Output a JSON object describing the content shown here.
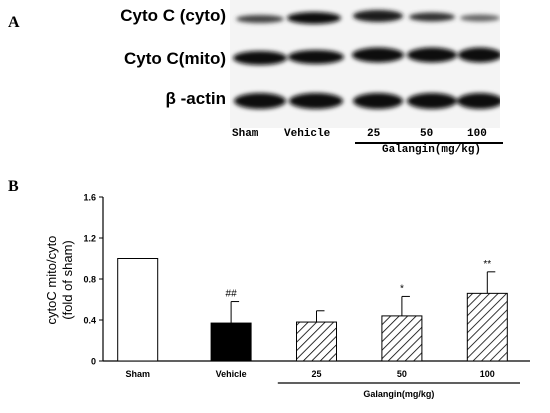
{
  "panel_a": {
    "letter": "A",
    "row_labels": [
      "Cyto C (cyto)",
      "Cyto C(mito)",
      "β -actin"
    ],
    "lanes": [
      "Sham",
      "Vehicle",
      "25",
      "50",
      "100"
    ],
    "group_label": "Galangin(mg/kg)"
  },
  "panel_b": {
    "letter": "B"
  },
  "chart_data": {
    "type": "bar",
    "categories": [
      "Sham",
      "Vehicle",
      "25",
      "50",
      "100"
    ],
    "values": [
      1.0,
      0.37,
      0.38,
      0.44,
      0.66
    ],
    "errors": [
      0,
      0.21,
      0.11,
      0.19,
      0.21
    ],
    "annotations": [
      "",
      "##",
      "",
      "*",
      "**"
    ],
    "fills": [
      "white",
      "black",
      "hatched",
      "hatched",
      "hatched"
    ],
    "ylabel": "cytoC  mito/cyto\n(fold of sham)",
    "xlabel_group": "Galangin(mg/kg)",
    "ylim": [
      0,
      1.6
    ],
    "yticks": [
      "0",
      "0.4",
      "0.8",
      "1.2",
      "1.6"
    ],
    "grid": false
  }
}
